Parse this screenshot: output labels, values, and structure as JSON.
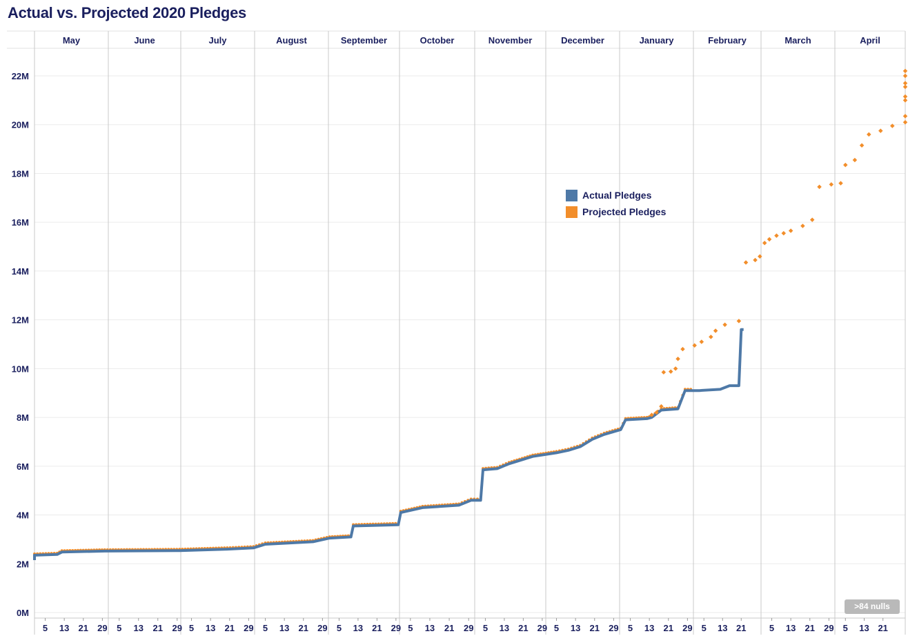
{
  "title": "Actual vs. Projected 2020 Pledges",
  "nulls_badge": ">84 nulls",
  "colors": {
    "actual": "#4e79a7",
    "projected": "#f28e2b",
    "text": "#1a1f5e",
    "grid": "#ebebeb",
    "divider": "#c8c8c8"
  },
  "chart_data": {
    "type": "line",
    "months": [
      "May",
      "June",
      "July",
      "August",
      "September",
      "October",
      "November",
      "December",
      "January",
      "February",
      "March",
      "April"
    ],
    "day_ticks": [
      [
        "5",
        "13",
        "21",
        "29"
      ],
      [
        "5",
        "13",
        "21",
        "29"
      ],
      [
        "5",
        "13",
        "21",
        "29"
      ],
      [
        "5",
        "13",
        "21",
        "29"
      ],
      [
        "5",
        "13",
        "21",
        "29"
      ],
      [
        "5",
        "13",
        "21",
        "29"
      ],
      [
        "5",
        "13",
        "21",
        "29"
      ],
      [
        "5",
        "13",
        "21",
        "29"
      ],
      [
        "5",
        "13",
        "21",
        "29"
      ],
      [
        "5",
        "13",
        "21"
      ],
      [
        "5",
        "13",
        "21",
        "29"
      ],
      [
        "5",
        "13",
        "21"
      ]
    ],
    "y_ticks": [
      "0M",
      "2M",
      "4M",
      "6M",
      "8M",
      "10M",
      "12M",
      "14M",
      "16M",
      "18M",
      "20M",
      "22M"
    ],
    "ylim": [
      0,
      23000000
    ],
    "grid": true,
    "legend_position": "center-right",
    "series": [
      {
        "name": "Actual Pledges",
        "style": "line",
        "points": [
          [
            "2019-05-01",
            2150000
          ],
          [
            "2019-05-10",
            2200000
          ],
          [
            "2019-05-20",
            2250000
          ],
          [
            "2019-05-28",
            2300000
          ],
          [
            "2019-05-31",
            2350000
          ],
          [
            "2019-06-10",
            2380000
          ],
          [
            "2019-06-12",
            2480000
          ],
          [
            "2019-06-30",
            2520000
          ],
          [
            "2019-07-31",
            2540000
          ],
          [
            "2019-08-20",
            2600000
          ],
          [
            "2019-08-31",
            2650000
          ],
          [
            "2019-09-05",
            2800000
          ],
          [
            "2019-09-25",
            2900000
          ],
          [
            "2019-10-01",
            3050000
          ],
          [
            "2019-10-10",
            3100000
          ],
          [
            "2019-10-11",
            3550000
          ],
          [
            "2019-10-30",
            3600000
          ],
          [
            "2019-11-01",
            4100000
          ],
          [
            "2019-11-10",
            4300000
          ],
          [
            "2019-11-25",
            4400000
          ],
          [
            "2019-11-30",
            4600000
          ],
          [
            "2019-12-03",
            4600000
          ],
          [
            "2019-12-04",
            5850000
          ],
          [
            "2019-12-10",
            5900000
          ],
          [
            "2019-12-15",
            6100000
          ],
          [
            "2019-12-25",
            6400000
          ],
          [
            "2020-01-05",
            6550000
          ],
          [
            "2020-01-10",
            6650000
          ],
          [
            "2020-01-15",
            6800000
          ],
          [
            "2020-01-20",
            7100000
          ],
          [
            "2020-01-25",
            7300000
          ],
          [
            "2020-02-01",
            7500000
          ],
          [
            "2020-02-03",
            7900000
          ],
          [
            "2020-02-12",
            7950000
          ],
          [
            "2020-02-14",
            8000000
          ],
          [
            "2020-02-18",
            8300000
          ],
          [
            "2020-02-25",
            8350000
          ],
          [
            "2020-02-28",
            9100000
          ],
          [
            "2020-03-03",
            9100000
          ],
          [
            "2020-03-12",
            9150000
          ],
          [
            "2020-03-16",
            9300000
          ],
          [
            "2020-03-20",
            9300000
          ],
          [
            "2020-03-21",
            11600000
          ],
          [
            "2020-03-22",
            11600000
          ]
        ]
      },
      {
        "name": "Projected Pledges",
        "style": "dots",
        "points": [
          [
            "2020-02-14",
            8100000
          ],
          [
            "2020-02-16",
            8200000
          ],
          [
            "2020-02-18",
            8450000
          ],
          [
            "2020-02-19",
            9850000
          ],
          [
            "2020-02-22",
            9880000
          ],
          [
            "2020-02-24",
            10000000
          ],
          [
            "2020-02-25",
            10400000
          ],
          [
            "2020-02-27",
            10800000
          ],
          [
            "2020-03-01",
            10950000
          ],
          [
            "2020-03-04",
            11100000
          ],
          [
            "2020-03-08",
            11300000
          ],
          [
            "2020-03-10",
            11550000
          ],
          [
            "2020-03-14",
            11800000
          ],
          [
            "2020-03-20",
            11950000
          ],
          [
            "2020-03-23",
            14350000
          ],
          [
            "2020-03-27",
            14450000
          ],
          [
            "2020-03-29",
            14600000
          ],
          [
            "2020-04-02",
            15150000
          ],
          [
            "2020-04-04",
            15300000
          ],
          [
            "2020-04-07",
            15450000
          ],
          [
            "2020-04-10",
            15550000
          ],
          [
            "2020-04-13",
            15650000
          ],
          [
            "2020-04-18",
            15850000
          ],
          [
            "2020-04-22",
            16100000
          ],
          [
            "2020-04-25",
            17450000
          ],
          [
            "2020-04-30",
            17550000
          ],
          [
            "2020-05-03",
            17600000
          ],
          [
            "2020-05-05",
            18350000
          ],
          [
            "2020-05-09",
            18550000
          ],
          [
            "2020-05-12",
            19150000
          ],
          [
            "2020-05-15",
            19600000
          ],
          [
            "2020-05-20",
            19750000
          ],
          [
            "2020-05-25",
            19950000
          ],
          [
            "2020-06-05",
            20100000
          ],
          [
            "2020-06-11",
            20350000
          ],
          [
            "2020-06-13",
            21000000
          ],
          [
            "2020-06-16",
            21150000
          ],
          [
            "2020-06-18",
            21550000
          ],
          [
            "2020-06-21",
            21700000
          ],
          [
            "2020-06-22",
            22000000
          ],
          [
            "2020-06-30",
            22200000
          ]
        ]
      }
    ]
  }
}
